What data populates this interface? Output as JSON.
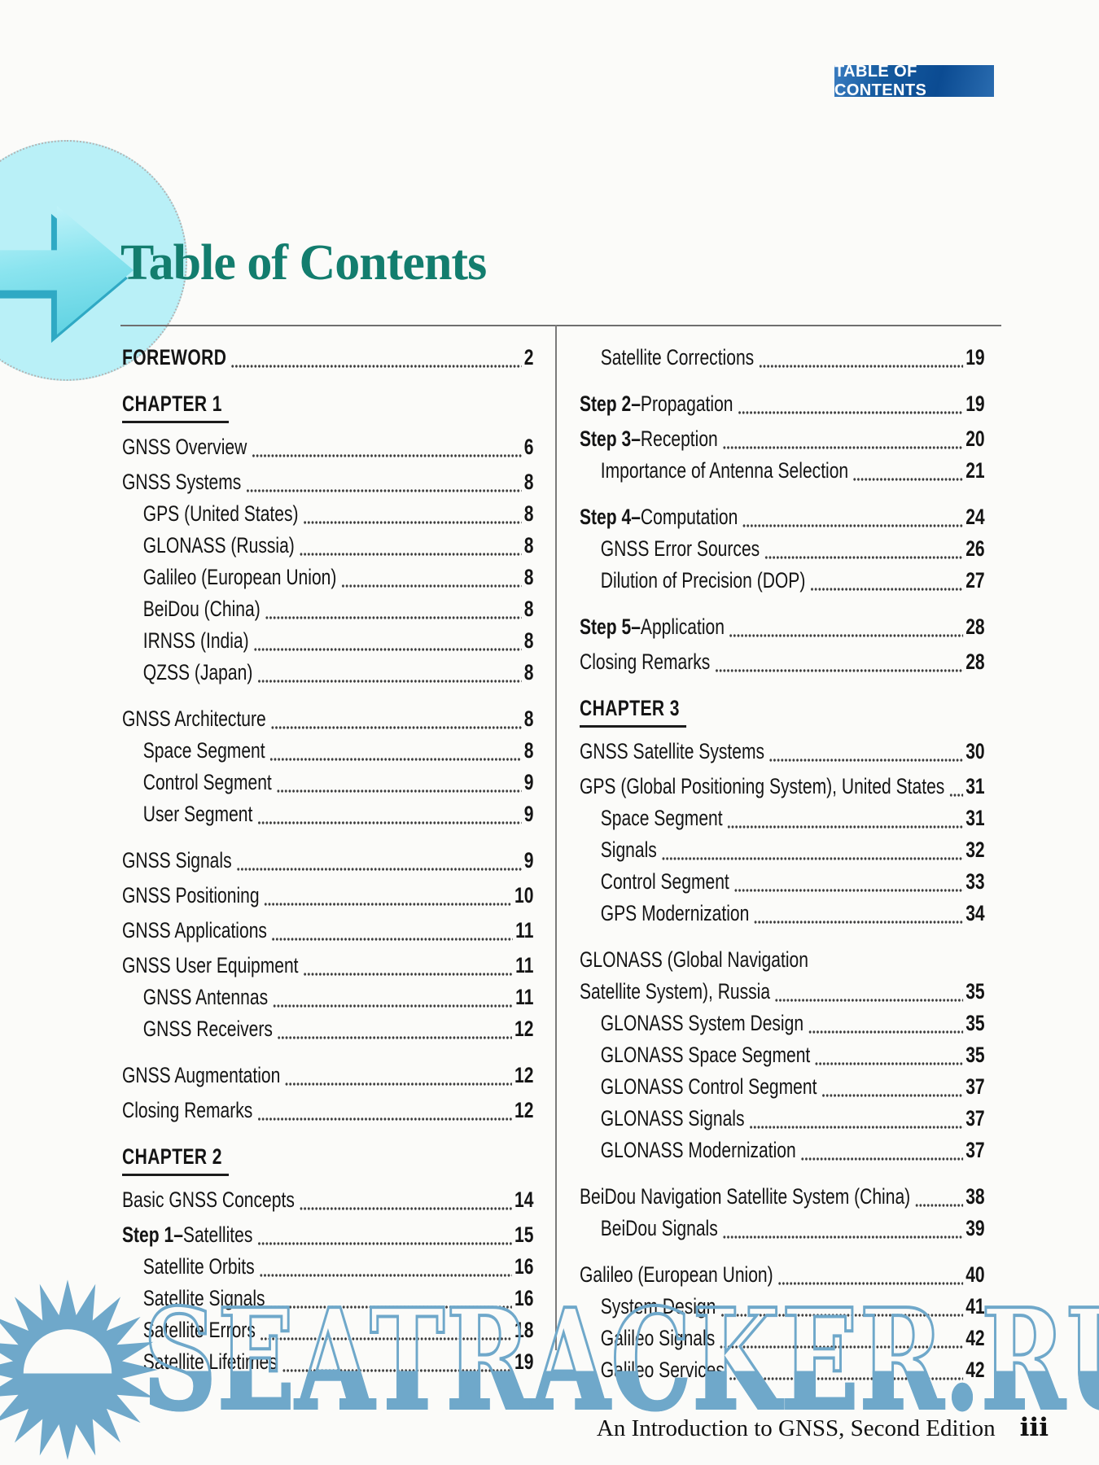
{
  "badge": {
    "label": "TABLE OF CONTENTS",
    "bg_color": "#0b4b92",
    "text_color": "#ffffff"
  },
  "header": {
    "title": "Table of Contents",
    "title_color": "#137d6e",
    "arrow_icon": "right-arrow",
    "arrow_color": "#8ae4ef",
    "circle_color": "#b9f0f7"
  },
  "toc": {
    "left_column": [
      {
        "variant": "caps",
        "label": "FOREWORD",
        "page": "2"
      },
      {
        "variant": "chapter",
        "label": "CHAPTER 1"
      },
      {
        "label": "GNSS Overview",
        "page": "6"
      },
      {
        "label": "GNSS Systems",
        "page": "8"
      },
      {
        "indent": 1,
        "label": "GPS (United States)",
        "page": "8"
      },
      {
        "indent": 1,
        "label": "GLONASS (Russia)",
        "page": "8"
      },
      {
        "indent": 1,
        "label": "Galileo (European Union)",
        "page": "8"
      },
      {
        "indent": 1,
        "label": "BeiDou (China)",
        "page": "8"
      },
      {
        "indent": 1,
        "label": "IRNSS (India)",
        "page": "8"
      },
      {
        "indent": 1,
        "label": "QZSS (Japan)",
        "page": "8"
      },
      {
        "label": "GNSS Architecture",
        "page": "8",
        "space_before": true
      },
      {
        "indent": 1,
        "label": "Space Segment",
        "page": "8"
      },
      {
        "indent": 1,
        "label": "Control Segment",
        "page": "9"
      },
      {
        "indent": 1,
        "label": "User Segment",
        "page": "9"
      },
      {
        "label": "GNSS Signals",
        "page": "9",
        "space_before": true
      },
      {
        "label": "GNSS Positioning",
        "page": "10"
      },
      {
        "label": "GNSS Applications",
        "page": "11"
      },
      {
        "label": "GNSS User Equipment",
        "page": "11"
      },
      {
        "indent": 1,
        "label": "GNSS Antennas",
        "page": "11"
      },
      {
        "indent": 1,
        "label": "GNSS Receivers",
        "page": "12"
      },
      {
        "label": "GNSS Augmentation",
        "page": "12",
        "space_before": true
      },
      {
        "label": "Closing Remarks",
        "page": "12"
      },
      {
        "variant": "chapter",
        "label": "CHAPTER 2"
      },
      {
        "label": "Basic GNSS Concepts",
        "page": "14"
      },
      {
        "variant": "step",
        "bold": "Step 1–",
        "rest": "Satellites",
        "page": "15"
      },
      {
        "indent": 1,
        "label": "Satellite Orbits",
        "page": "16"
      },
      {
        "indent": 1,
        "label": "Satellite Signals",
        "page": "16"
      },
      {
        "indent": 1,
        "label": "Satellite Errors",
        "page": "18"
      },
      {
        "indent": 1,
        "label": "Satellite Lifetimes",
        "page": "19"
      }
    ],
    "right_column": [
      {
        "indent": 1,
        "label": "Satellite Corrections",
        "page": "19"
      },
      {
        "variant": "step",
        "bold": "Step 2–",
        "rest": "Propagation",
        "page": "19",
        "space_before": true
      },
      {
        "variant": "step",
        "bold": "Step 3–",
        "rest": "Reception",
        "page": "20"
      },
      {
        "indent": 1,
        "label": "Importance of Antenna Selection",
        "page": "21"
      },
      {
        "variant": "step",
        "bold": "Step 4–",
        "rest": "Computation",
        "page": "24",
        "space_before": true
      },
      {
        "indent": 1,
        "label": "GNSS Error Sources",
        "page": "26"
      },
      {
        "indent": 1,
        "label": "Dilution of Precision (DOP)",
        "page": "27"
      },
      {
        "variant": "step",
        "bold": "Step 5–",
        "rest": "Application",
        "page": "28",
        "space_before": true
      },
      {
        "label": "Closing Remarks",
        "page": "28"
      },
      {
        "variant": "chapter",
        "label": "CHAPTER 3"
      },
      {
        "label": "GNSS Satellite Systems",
        "page": "30"
      },
      {
        "label": "GPS (Global Positioning System), United States",
        "page": "31"
      },
      {
        "indent": 1,
        "label": "Space Segment",
        "page": "31"
      },
      {
        "indent": 1,
        "label": "Signals",
        "page": "32"
      },
      {
        "indent": 1,
        "label": "Control Segment",
        "page": "33"
      },
      {
        "indent": 1,
        "label": "GPS Modernization",
        "page": "34"
      },
      {
        "variant": "twoline",
        "label": "GLONASS (Global Navigation",
        "label2": "Satellite System), Russia",
        "page": "35",
        "space_before": true
      },
      {
        "indent": 1,
        "label": "GLONASS System Design",
        "page": "35"
      },
      {
        "indent": 1,
        "label": "GLONASS Space Segment",
        "page": "35"
      },
      {
        "indent": 1,
        "label": "GLONASS Control Segment",
        "page": "37"
      },
      {
        "indent": 1,
        "label": "GLONASS Signals",
        "page": "37"
      },
      {
        "indent": 1,
        "label": "GLONASS Modernization",
        "page": "37"
      },
      {
        "label": "BeiDou Navigation Satellite System (China)",
        "page": "38",
        "space_before": true
      },
      {
        "indent": 1,
        "label": "BeiDou Signals",
        "page": "39"
      },
      {
        "label": "Galileo (European Union)",
        "page": "40",
        "space_before": true
      },
      {
        "indent": 1,
        "label": "System Design",
        "page": "41"
      },
      {
        "indent": 1,
        "label": "Galileo Signals",
        "page": "42"
      },
      {
        "indent": 1,
        "label": "Galileo Services",
        "page": "42"
      }
    ]
  },
  "watermark": {
    "text": "SEATRACKER.RU",
    "color": "#6fa8ca",
    "icon": "sun-logo"
  },
  "footer": {
    "book_title": "An Introduction to GNSS, Second Edition",
    "page_number": "iii"
  }
}
